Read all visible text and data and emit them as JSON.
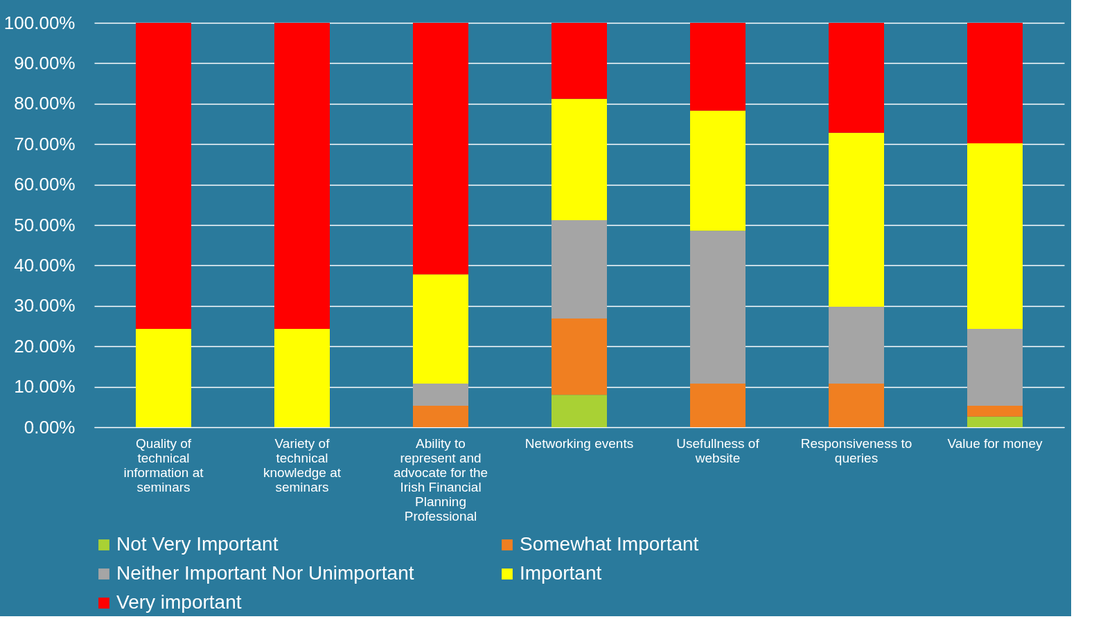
{
  "chart_data": {
    "type": "bar",
    "stacked": true,
    "categories": [
      "Quality of technical information at seminars",
      "Variety of technical knowledge at seminars",
      "Ability to represent and advocate for the Irish Financial Planning Professional",
      "Networking events",
      "Usefullness of website",
      "Responsiveness to queries",
      "Value for money"
    ],
    "series": [
      {
        "name": "Not Very Important",
        "color": "#a9d134",
        "values": [
          0,
          0,
          0,
          8.0,
          0,
          0,
          2.6
        ]
      },
      {
        "name": "Somewhat Important",
        "color": "#f07f21",
        "values": [
          0,
          0,
          5.3,
          18.9,
          10.8,
          10.8,
          2.7
        ]
      },
      {
        "name": "Neither Important Nor Unimportant",
        "color": "#a5a5a5",
        "values": [
          0,
          0,
          5.5,
          24.3,
          37.8,
          19.0,
          19.0
        ]
      },
      {
        "name": "Important",
        "color": "#ffff00",
        "values": [
          24.3,
          24.3,
          27.0,
          30.0,
          29.7,
          43.0,
          45.9
        ]
      },
      {
        "name": "Very important",
        "color": "#ff0000",
        "values": [
          75.7,
          75.7,
          62.2,
          18.8,
          21.7,
          27.2,
          29.8
        ]
      }
    ],
    "ylim": [
      0,
      100
    ],
    "yticks": [
      {
        "value": 0,
        "label": "0.00%"
      },
      {
        "value": 10,
        "label": "10.00%"
      },
      {
        "value": 20,
        "label": "20.00%"
      },
      {
        "value": 30,
        "label": "30.00%"
      },
      {
        "value": 40,
        "label": "40.00%"
      },
      {
        "value": 50,
        "label": "50.00%"
      },
      {
        "value": 60,
        "label": "60.00%"
      },
      {
        "value": 70,
        "label": "70.00%"
      },
      {
        "value": 80,
        "label": "80.00%"
      },
      {
        "value": 90,
        "label": "90.00%"
      },
      {
        "value": 100,
        "label": "100.00%"
      }
    ],
    "grid": "y",
    "legend": "bottom"
  }
}
